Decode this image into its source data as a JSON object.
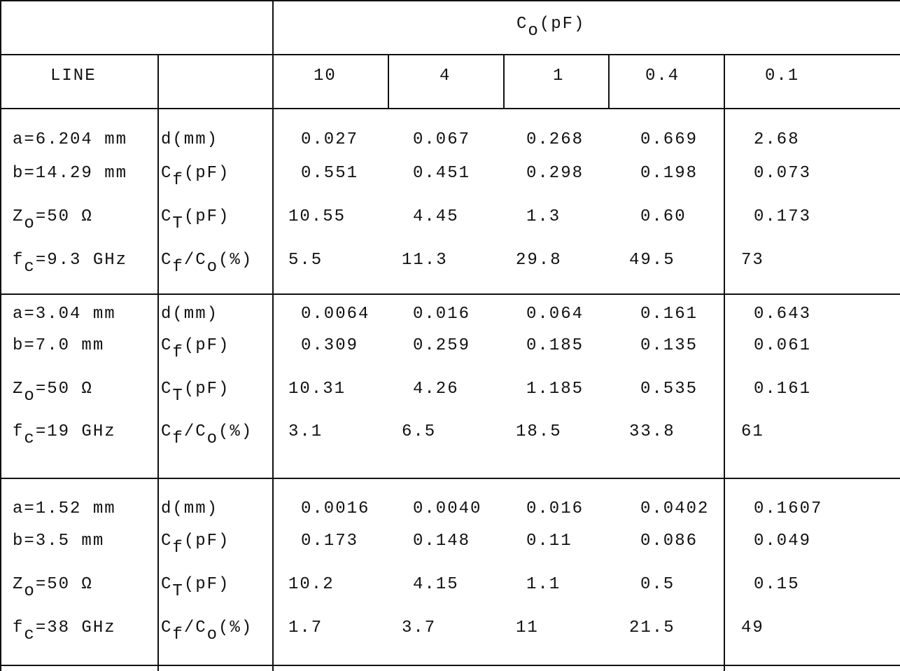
{
  "header": {
    "title": [
      "C",
      {
        "sub": "o"
      },
      "(pF)"
    ]
  },
  "columns": {
    "line": "LINE",
    "values": [
      "10",
      "4",
      "1",
      "0.4",
      "0.1"
    ]
  },
  "groups": [
    {
      "line_params": [
        [
          "a=6.204 mm"
        ],
        [
          "b=14.29 mm"
        ],
        [
          "Z",
          {
            "sub": "o"
          },
          "=50 Ω"
        ],
        [
          "f",
          {
            "sub": "c"
          },
          "=9.3 GHz"
        ]
      ],
      "rows": [
        {
          "param": [
            "d(mm)"
          ],
          "values": [
            "0.027",
            "0.067",
            "0.268",
            "0.669",
            "2.68"
          ]
        },
        {
          "param": [
            "C",
            {
              "sub": "f"
            },
            "(pF)"
          ],
          "values": [
            "0.551",
            "0.451",
            "0.298",
            "0.198",
            "0.073"
          ]
        },
        {
          "param": [
            "C",
            {
              "sub": "T"
            },
            "(pF)"
          ],
          "values": [
            "10.55",
            "4.45",
            "1.3",
            "0.60",
            "0.173"
          ]
        },
        {
          "param": [
            "C",
            {
              "sub": "f"
            },
            "/C",
            {
              "sub": "o"
            },
            "(%)"
          ],
          "values": [
            "5.5",
            "11.3",
            "29.8",
            "49.5",
            "73"
          ]
        }
      ]
    },
    {
      "line_params": [
        [
          "a=3.04 mm"
        ],
        [
          "b=7.0  mm"
        ],
        [
          "Z",
          {
            "sub": "o"
          },
          "=50 Ω"
        ],
        [
          "f",
          {
            "sub": "c"
          },
          "=19 GHz"
        ]
      ],
      "rows": [
        {
          "param": [
            "d(mm)"
          ],
          "values": [
            "0.0064",
            "0.016",
            "0.064",
            "0.161",
            "0.643"
          ]
        },
        {
          "param": [
            "C",
            {
              "sub": "f"
            },
            "(pF)"
          ],
          "values": [
            "0.309",
            "0.259",
            "0.185",
            "0.135",
            "0.061"
          ]
        },
        {
          "param": [
            "C",
            {
              "sub": "T"
            },
            "(pF)"
          ],
          "values": [
            "10.31",
            "4.26",
            "1.185",
            "0.535",
            "0.161"
          ]
        },
        {
          "param": [
            "C",
            {
              "sub": "f"
            },
            "/C",
            {
              "sub": "o"
            },
            "(%)"
          ],
          "values": [
            "3.1",
            "6.5",
            "18.5",
            "33.8",
            "61"
          ]
        }
      ]
    },
    {
      "line_params": [
        [
          "a=1.52 mm"
        ],
        [
          "b=3.5  mm"
        ],
        [
          "Z",
          {
            "sub": "o"
          },
          "=50 Ω"
        ],
        [
          "f",
          {
            "sub": "c"
          },
          "=38 GHz"
        ]
      ],
      "rows": [
        {
          "param": [
            "d(mm)"
          ],
          "values": [
            "0.0016",
            "0.0040",
            "0.016",
            "0.0402",
            "0.1607"
          ]
        },
        {
          "param": [
            "C",
            {
              "sub": "f"
            },
            "(pF)"
          ],
          "values": [
            "0.173",
            "0.148",
            "0.11",
            "0.086",
            "0.049"
          ]
        },
        {
          "param": [
            "C",
            {
              "sub": "T"
            },
            "(pF)"
          ],
          "values": [
            "10.2",
            "4.15",
            "1.1",
            "0.5",
            "0.15"
          ]
        },
        {
          "param": [
            "C",
            {
              "sub": "f"
            },
            "/C",
            {
              "sub": "o"
            },
            "(%)"
          ],
          "values": [
            "1.7",
            "3.7",
            "11",
            "21.5",
            "49"
          ]
        }
      ]
    }
  ]
}
